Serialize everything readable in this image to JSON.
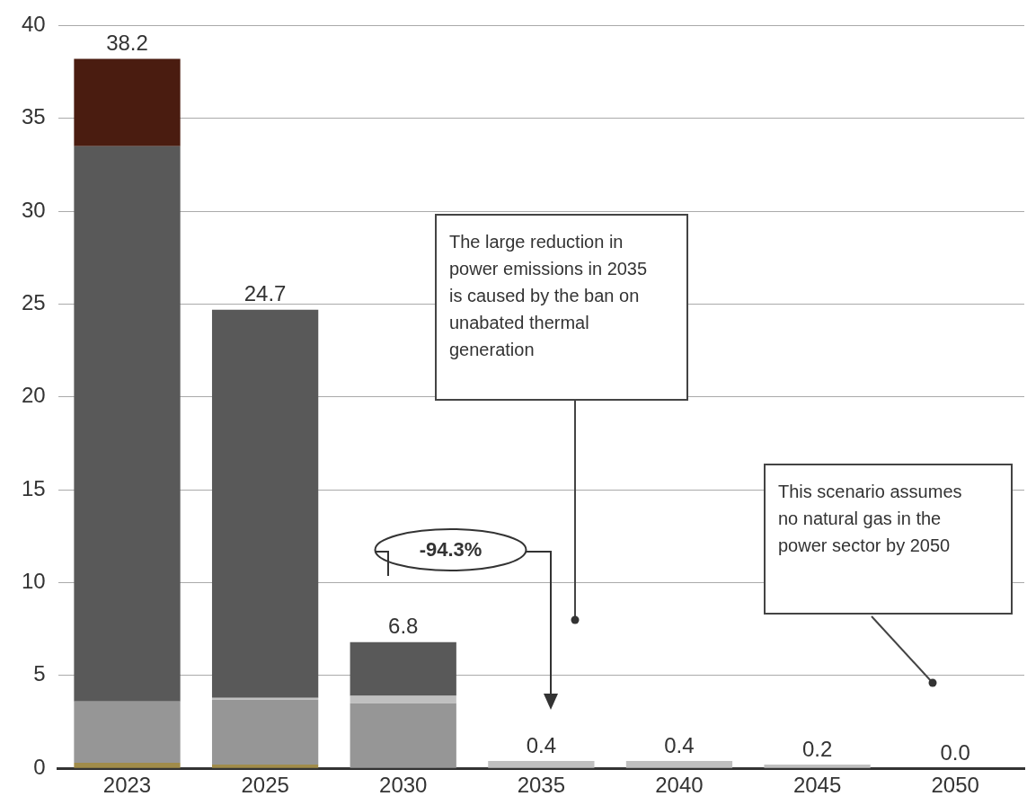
{
  "chart_data": {
    "type": "bar",
    "stacked": true,
    "categories": [
      "2023",
      "2025",
      "2030",
      "2035",
      "2040",
      "2045",
      "2050"
    ],
    "series": [
      {
        "color": "#a08c4a",
        "values": [
          0.3,
          0.2,
          0,
          0,
          0,
          0,
          0
        ]
      },
      {
        "color": "#969696",
        "values": [
          3.3,
          3.5,
          3.5,
          0,
          0,
          0,
          0
        ]
      },
      {
        "color": "#c0c0c0",
        "values": [
          0,
          0.1,
          0.4,
          0.4,
          0.4,
          0.2,
          0
        ]
      },
      {
        "color": "#595959",
        "values": [
          29.9,
          20.9,
          2.9,
          0,
          0,
          0,
          0
        ]
      },
      {
        "color": "#4a1c10",
        "values": [
          4.7,
          0,
          0,
          0,
          0,
          0,
          0
        ]
      }
    ],
    "totals": [
      "38.2",
      "24.7",
      "6.8",
      "0.4",
      "0.4",
      "0.2",
      "0.0"
    ],
    "ylim": [
      0,
      40
    ],
    "yticks": [
      0,
      5,
      10,
      15,
      20,
      25,
      30,
      35,
      40
    ],
    "grid": "y",
    "legend": false,
    "annotations": [
      "The large reduction in power emissions in 2035 is caused by the ban on unabated thermal generation",
      "This scenario assumes no natural gas in the power sector by 2050",
      "-94.3%"
    ]
  }
}
